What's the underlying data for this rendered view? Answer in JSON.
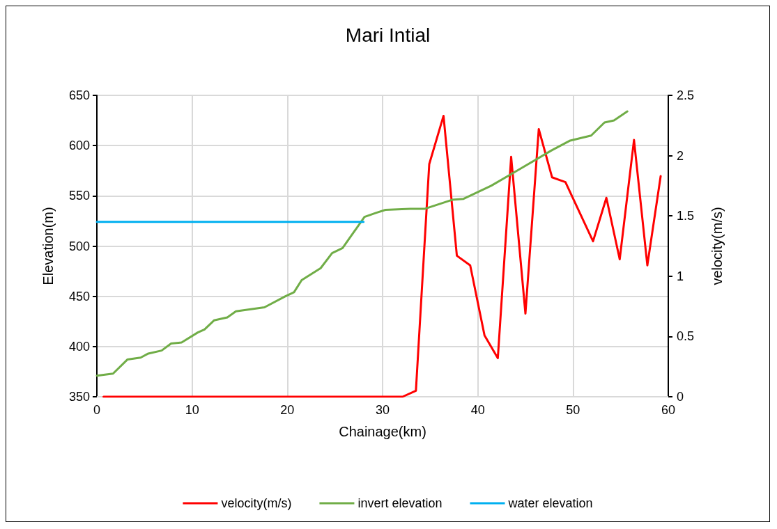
{
  "chart_data": {
    "type": "line",
    "title": "Mari Intial",
    "xlabel": "Chainage(km)",
    "ylabel": "Elevation(m)",
    "y2label": "velocity(m/s)",
    "xlim": [
      0,
      60
    ],
    "xticks": [
      0,
      10,
      20,
      30,
      40,
      50,
      60
    ],
    "ylim": [
      350,
      650
    ],
    "yticks": [
      350,
      400,
      450,
      500,
      550,
      600,
      650
    ],
    "y2lim": [
      0,
      2.5
    ],
    "y2ticks": [
      0,
      0.5,
      1,
      1.5,
      2,
      2.5
    ],
    "grid": true,
    "legend": "bottom",
    "marker": "none",
    "line_style": "solid",
    "series": [
      {
        "name": "velocity(m/s)",
        "color": "#ff0000",
        "axis": "y2",
        "x": [
          0.7,
          10,
          20,
          30,
          32.1,
          33.5,
          34.9,
          36.4,
          37.8,
          39.2,
          40.7,
          42.1,
          43.5,
          45.0,
          46.4,
          47.8,
          49.2,
          52.1,
          53.5,
          54.9,
          56.4,
          57.8,
          59.2
        ],
        "values": [
          0,
          0,
          0,
          0,
          0,
          0.05,
          1.93,
          2.33,
          1.17,
          1.09,
          0.51,
          0.32,
          1.99,
          0.69,
          2.22,
          1.82,
          1.78,
          1.29,
          1.65,
          1.14,
          2.13,
          1.09,
          1.83
        ]
      },
      {
        "name": "invert elevation",
        "color": "#70ad47",
        "axis": "y",
        "x": [
          0,
          1.7,
          3.2,
          4.6,
          5.4,
          6.8,
          7.8,
          8.9,
          10.6,
          11.3,
          12.3,
          13.7,
          14.6,
          17.6,
          19.8,
          20.7,
          21.5,
          23.5,
          24.7,
          25.8,
          28.1,
          29.3,
          30.3,
          32.9,
          34.4,
          37.3,
          38.5,
          41.4,
          44.3,
          47.7,
          49.7,
          51.9,
          53.3,
          54.3,
          55.7
        ],
        "values": [
          371,
          373,
          387,
          389,
          393,
          396,
          403,
          404,
          414,
          417,
          426,
          429,
          435,
          439,
          450,
          454,
          466,
          478,
          493,
          498,
          529,
          533,
          536,
          537,
          537,
          546,
          547,
          560,
          576,
          595,
          605,
          610,
          623,
          625,
          634
        ]
      },
      {
        "name": "water elevation",
        "color": "#00b0f0",
        "axis": "y",
        "x": [
          0,
          28
        ],
        "values": [
          524,
          524
        ]
      }
    ]
  }
}
